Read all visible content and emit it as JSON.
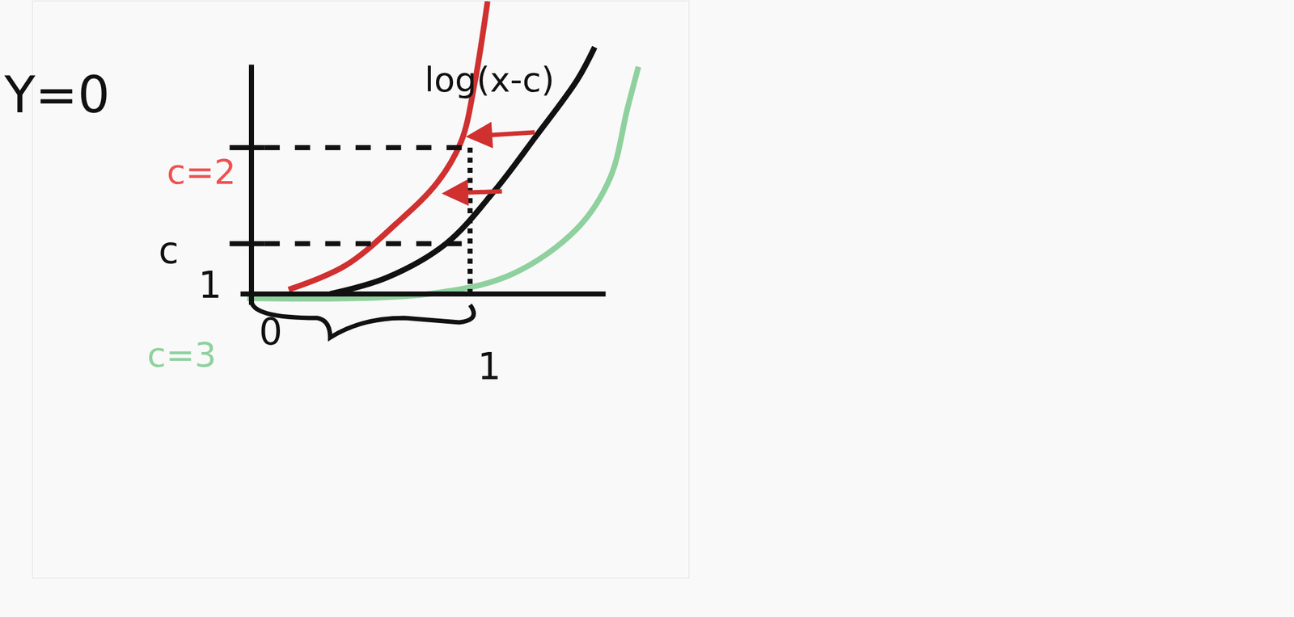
{
  "chart_data": {
    "type": "line",
    "xlim": [
      -1.0,
      2.0
    ],
    "ylim": [
      -1.3,
      1.34
    ],
    "xticks": [
      0,
      1
    ],
    "yticks": [
      0.23,
      0.67
    ],
    "tick_labels": "x",
    "grid": false,
    "series": [
      {
        "color": "#d03030",
        "x": [
          0.17,
          0.43,
          0.66,
          0.85,
          0.96,
          1.02,
          1.08
        ],
        "values": [
          0.02,
          0.13,
          0.32,
          0.51,
          0.7,
          0.96,
          1.34
        ]
      },
      {
        "color": "#111111",
        "x": [
          0.36,
          0.62,
          0.89,
          1.11,
          1.3,
          1.49,
          1.57
        ],
        "values": [
          0.0,
          0.075,
          0.23,
          0.47,
          0.72,
          0.98,
          1.13
        ]
      },
      {
        "color": "#8fd19e",
        "x": [
          -0.02,
          0.81,
          1.19,
          1.49,
          1.64,
          1.72,
          1.77
        ],
        "values": [
          -0.02,
          0.0,
          0.09,
          0.3,
          0.53,
          0.85,
          1.04
        ]
      }
    ],
    "annotations": [
      {
        "text": "Y=0",
        "color": "#111111"
      },
      {
        "text": "log(x-c)",
        "color": "#111111"
      },
      {
        "text": "c=2",
        "color": "#f05050"
      },
      {
        "text": "c",
        "color": "#111111"
      },
      {
        "text": "1",
        "color": "#111111"
      },
      {
        "text": "c=3",
        "color": "#8fd19e"
      }
    ]
  }
}
